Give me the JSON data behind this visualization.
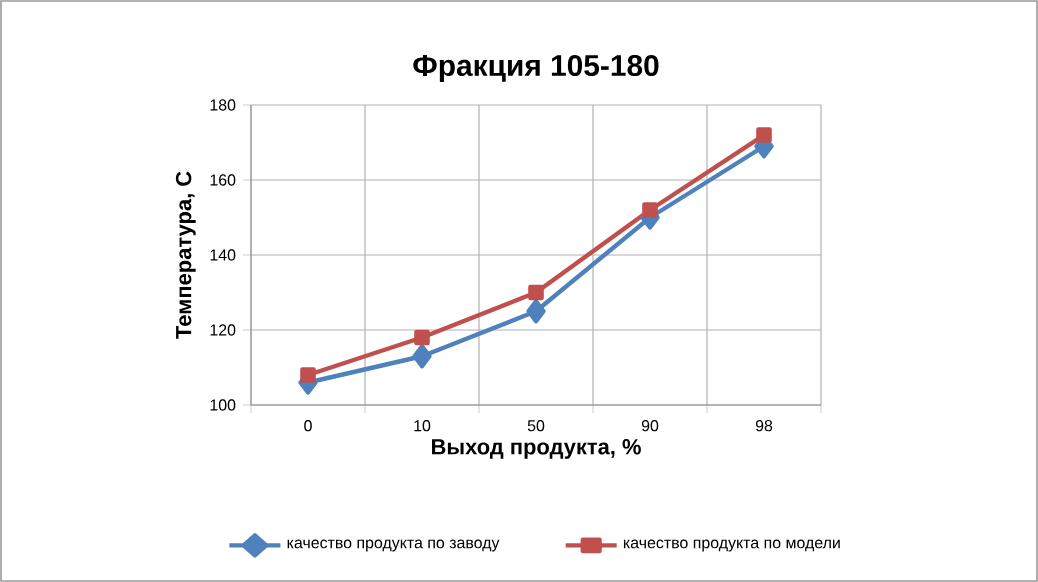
{
  "chart_data": {
    "type": "line",
    "title": "Фракция 105-180",
    "xlabel": "Выход продукта, %",
    "ylabel": "Температура, С",
    "categories": [
      "0",
      "10",
      "50",
      "90",
      "98"
    ],
    "series": [
      {
        "name": "качество продукта по заводу",
        "color": "#4f81bd",
        "marker": "diamond",
        "values": [
          106,
          113,
          125,
          150,
          169
        ]
      },
      {
        "name": "качество продукта по модели",
        "color": "#c0504d",
        "marker": "square",
        "values": [
          108,
          118,
          130,
          152,
          172
        ]
      }
    ],
    "ylim": [
      100,
      180
    ],
    "yticks": [
      100,
      120,
      140,
      160,
      180
    ],
    "grid": true,
    "legend": "bottom",
    "line_style": "solid"
  }
}
